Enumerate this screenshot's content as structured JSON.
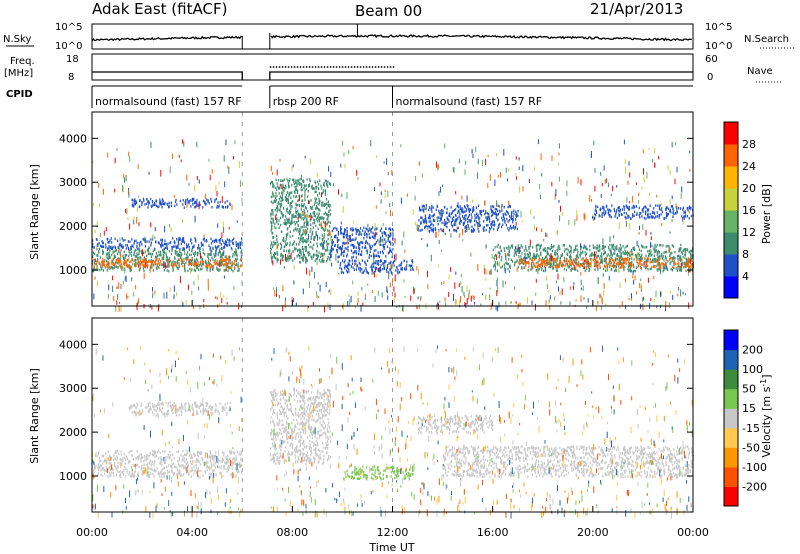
{
  "header": {
    "radar": "Adak East (fitACF)",
    "beam": "Beam 00",
    "date": "21/Apr/2013"
  },
  "top_panels": {
    "nsky_label": "N.Sky",
    "nsky_ticks": [
      "10^5",
      "10^0"
    ],
    "nsearch_label": "N.Search",
    "nsearch_ticks": [
      "10^5",
      "10^0"
    ],
    "freq_label": "Freq.",
    "freq_unit": "[MHz]",
    "freq_ticks": [
      "18",
      "8"
    ],
    "nave_label": "Nave",
    "nave_ticks": [
      "60",
      "0"
    ],
    "cpid_label": "CPID",
    "cpid_segments": [
      {
        "label": "normalsound (fast) 157 RF",
        "start": 0,
        "end": 6
      },
      {
        "label": "rbsp 200 RF",
        "start": 7.1,
        "end": 12
      },
      {
        "label": "normalsound (fast) 157 RF",
        "start": 12,
        "end": 24
      }
    ]
  },
  "chart_data": [
    {
      "type": "heatmap",
      "name": "power-panel",
      "ylabel": "Slant Range [km]",
      "ylim": [
        180,
        4600
      ],
      "yticks": [
        "1000",
        "2000",
        "3000",
        "4000"
      ],
      "xlim": [
        0,
        24
      ],
      "colorbar_label": "Power [dB]",
      "colorbar_ticks": [
        "28",
        "24",
        "20",
        "16",
        "12",
        "8",
        "4"
      ],
      "colorbar_colors": [
        "#0000ff",
        "#1e50c8",
        "#3c8c6e",
        "#64b464",
        "#c8d23c",
        "#ffb400",
        "#ff6400",
        "#ff0000"
      ],
      "bands": [
        {
          "t0": 0,
          "t1": 6,
          "r0": 1000,
          "r1": 1500,
          "color": "#3c8c6e"
        },
        {
          "t0": 0,
          "t1": 6,
          "r0": 1080,
          "r1": 1280,
          "color": "#ff6400"
        },
        {
          "t0": 0,
          "t1": 6,
          "r0": 1500,
          "r1": 1750,
          "color": "#1e50c8"
        },
        {
          "t0": 1.5,
          "t1": 5.5,
          "r0": 2450,
          "r1": 2650,
          "color": "#1e50c8"
        },
        {
          "t0": 7.1,
          "t1": 9.5,
          "r0": 1200,
          "r1": 3100,
          "color": "#3c8c6e"
        },
        {
          "t0": 9.5,
          "t1": 12,
          "r0": 1300,
          "r1": 2000,
          "color": "#1e50c8"
        },
        {
          "t0": 9.8,
          "t1": 12.8,
          "r0": 950,
          "r1": 1250,
          "color": "#1e50c8"
        },
        {
          "t0": 13,
          "t1": 17,
          "r0": 1900,
          "r1": 2500,
          "color": "#1e50c8"
        },
        {
          "t0": 16,
          "t1": 24,
          "r0": 1000,
          "r1": 1600,
          "color": "#3c8c6e"
        },
        {
          "t0": 17,
          "t1": 24,
          "r0": 1080,
          "r1": 1300,
          "color": "#ff6400"
        },
        {
          "t0": 20,
          "t1": 24,
          "r0": 2200,
          "r1": 2500,
          "color": "#1e50c8"
        }
      ]
    },
    {
      "type": "heatmap",
      "name": "velocity-panel",
      "ylabel": "Slant Range [km]",
      "ylim": [
        180,
        4600
      ],
      "yticks": [
        "1000",
        "2000",
        "3000",
        "4000"
      ],
      "xlim": [
        0,
        24
      ],
      "xlabel": "Time UT",
      "xticks": [
        "00:00",
        "04:00",
        "08:00",
        "12:00",
        "16:00",
        "20:00",
        "00:00"
      ],
      "colorbar_label": "Velocity [m s",
      "colorbar_ticks": [
        "200",
        "100",
        "50",
        "15",
        "-15",
        "-50",
        "-100",
        "-200"
      ],
      "colorbar_colors": [
        "#ff0000",
        "#ff5000",
        "#ff9600",
        "#ffc850",
        "#c8c8c8",
        "#78c850",
        "#3c8c3c",
        "#1e64b4",
        "#0000ff"
      ],
      "bands": [
        {
          "t0": 0,
          "t1": 6,
          "r0": 1000,
          "r1": 1600,
          "color": "#c8c8c8"
        },
        {
          "t0": 1.5,
          "t1": 5.5,
          "r0": 2400,
          "r1": 2700,
          "color": "#c8c8c8"
        },
        {
          "t0": 7.1,
          "t1": 9.5,
          "r0": 1300,
          "r1": 3000,
          "color": "#c8c8c8"
        },
        {
          "t0": 10,
          "t1": 12.8,
          "r0": 950,
          "r1": 1250,
          "color": "#78c850"
        },
        {
          "t0": 14,
          "t1": 24,
          "r0": 1000,
          "r1": 1700,
          "color": "#c8c8c8"
        },
        {
          "t0": 13,
          "t1": 16,
          "r0": 2000,
          "r1": 2400,
          "color": "#c8c8c8"
        }
      ]
    }
  ]
}
